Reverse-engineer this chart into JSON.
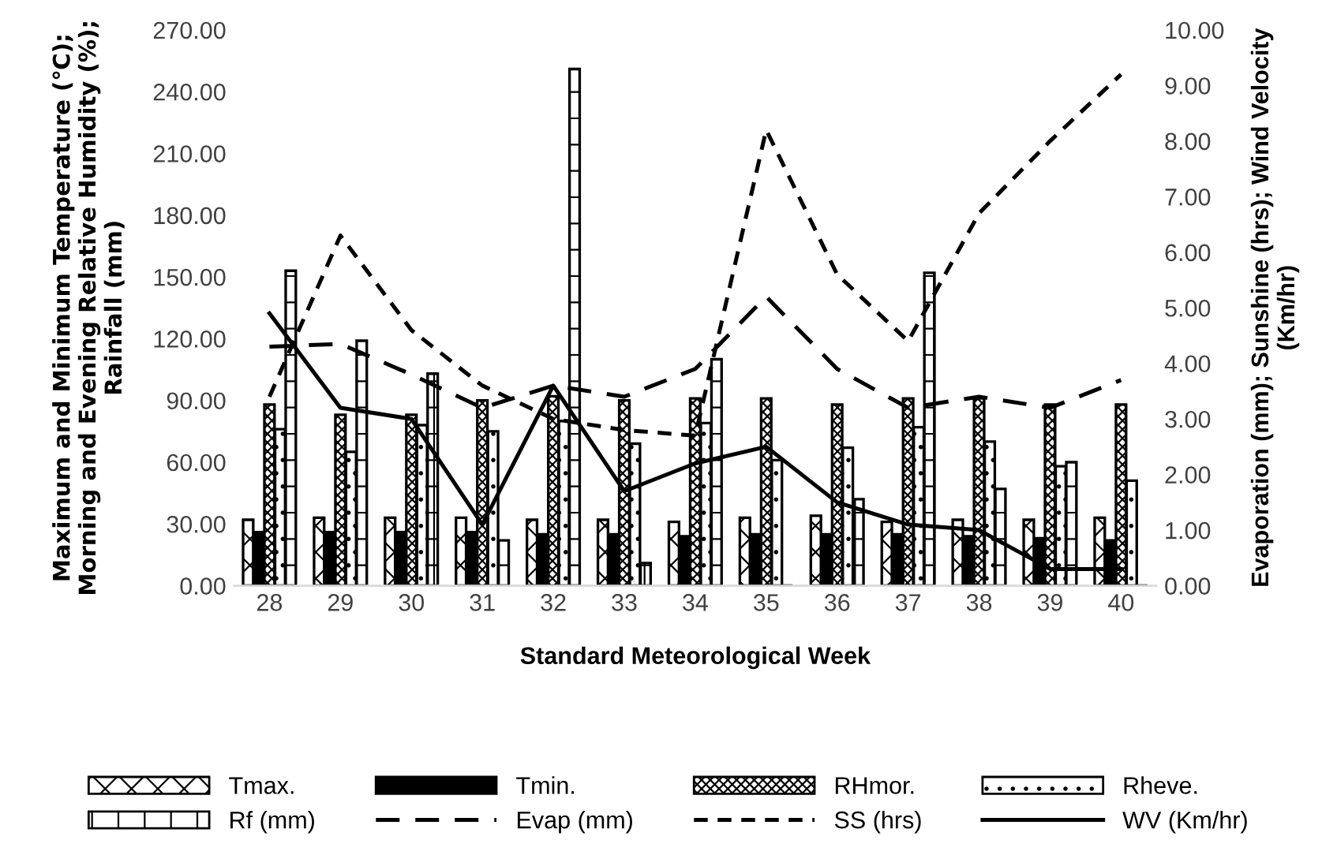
{
  "chart_data": {
    "type": "bar",
    "xlabel": "Standard Meteorological Week",
    "ylabel": "Maximum and Minimum Temperature (℃); Morning and Evening Relative Humidity (%); Rainfall (mm)",
    "y2label": "Evaporation (mm); Sunshine (hrs); Wind Velocity (Km/hr)",
    "categories": [
      "28",
      "29",
      "30",
      "31",
      "32",
      "33",
      "34",
      "35",
      "36",
      "37",
      "38",
      "39",
      "40"
    ],
    "series": [
      {
        "name": "Tmax.",
        "type": "bar",
        "color": "#000000",
        "values": [
          32,
          33,
          33,
          33,
          32,
          32,
          31,
          33,
          34,
          31,
          32,
          32,
          33
        ]
      },
      {
        "name": "Tmin.",
        "type": "bar",
        "color": "#000000",
        "values": [
          26,
          26,
          26,
          26,
          25,
          25,
          24,
          25,
          25,
          25,
          24,
          23,
          22
        ]
      },
      {
        "name": "RHmor.",
        "type": "bar",
        "color": "#000000",
        "values": [
          88,
          83,
          83,
          90,
          92,
          90,
          91,
          91,
          88,
          91,
          91,
          88,
          88
        ]
      },
      {
        "name": "Rheve.",
        "type": "bar",
        "color": "#000000",
        "values": [
          76,
          65,
          78,
          75,
          80,
          69,
          79,
          61,
          67,
          77,
          70,
          58,
          51
        ]
      },
      {
        "name": "Rf (mm)",
        "type": "bar",
        "color": "#000000",
        "values": [
          153,
          119,
          103,
          22,
          251,
          11,
          110,
          0,
          42,
          152,
          47,
          60,
          0
        ]
      },
      {
        "name": "Evap (mm)",
        "type": "line",
        "axis": "y2",
        "line_style": "dashed",
        "color": "#000000",
        "values": [
          4.3,
          4.35,
          3.8,
          3.2,
          3.6,
          3.4,
          3.9,
          5.2,
          3.9,
          3.2,
          3.4,
          3.2,
          3.7
        ]
      },
      {
        "name": "SS (hrs)",
        "type": "line",
        "axis": "y2",
        "line_style": "dashed",
        "color": "#000000",
        "values": [
          3.4,
          6.3,
          4.6,
          3.6,
          3.0,
          2.8,
          2.7,
          8.2,
          5.6,
          4.4,
          6.7,
          8.0,
          9.2
        ]
      },
      {
        "name": "WV (Km/hr)",
        "type": "line",
        "axis": "y2",
        "line_style": "solid",
        "color": "#000000",
        "values": [
          4.9,
          3.2,
          3.0,
          1.1,
          3.6,
          1.7,
          2.2,
          2.5,
          1.5,
          1.1,
          1.0,
          0.3,
          0.3
        ]
      }
    ],
    "ylim": [
      0,
      270
    ],
    "yticks": [
      {
        "value": 0,
        "label": "0.00"
      },
      {
        "value": 30,
        "label": "30.00"
      },
      {
        "value": 60,
        "label": "60.00"
      },
      {
        "value": 90,
        "label": "90.00"
      },
      {
        "value": 120,
        "label": "120.00"
      },
      {
        "value": 150,
        "label": "150.00"
      },
      {
        "value": 180,
        "label": "180.00"
      },
      {
        "value": 210,
        "label": "210.00"
      },
      {
        "value": 240,
        "label": "240.00"
      },
      {
        "value": 270,
        "label": "270.00"
      }
    ],
    "y2lim": [
      0,
      10
    ],
    "y2ticks": [
      {
        "value": 0,
        "label": "0.00"
      },
      {
        "value": 1,
        "label": "1.00"
      },
      {
        "value": 2,
        "label": "2.00"
      },
      {
        "value": 3,
        "label": "3.00"
      },
      {
        "value": 4,
        "label": "4.00"
      },
      {
        "value": 5,
        "label": "5.00"
      },
      {
        "value": 6,
        "label": "6.00"
      },
      {
        "value": 7,
        "label": "7.00"
      },
      {
        "value": 8,
        "label": "8.00"
      },
      {
        "value": 9,
        "label": "9.00"
      },
      {
        "value": 10,
        "label": "10.00"
      }
    ],
    "grid": false,
    "legend": "bottom"
  }
}
